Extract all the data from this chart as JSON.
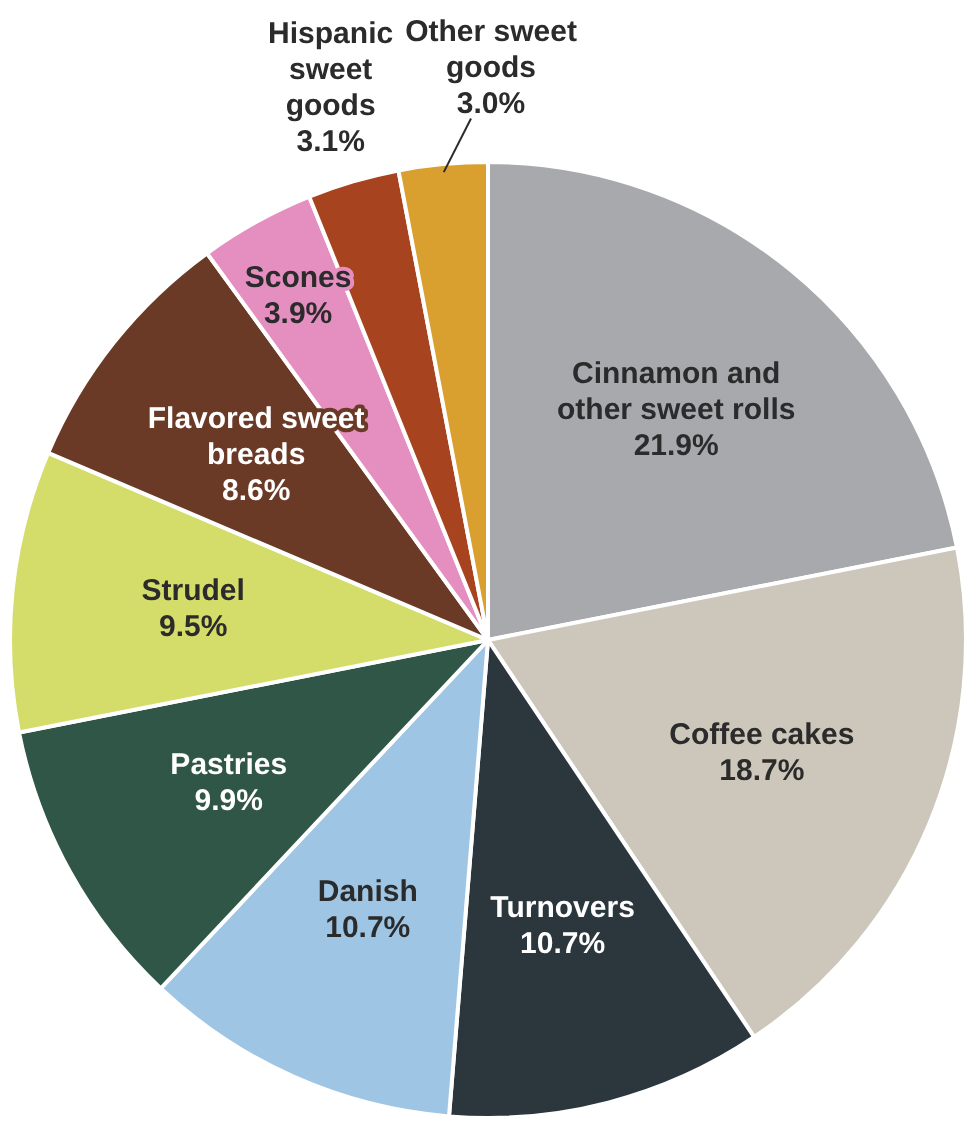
{
  "chart_data": {
    "type": "pie",
    "categories": [
      "Cinnamon and other sweet rolls",
      "Coffee cakes",
      "Turnovers",
      "Danish",
      "Pastries",
      "Strudel",
      "Flavored sweet breads",
      "Scones",
      "Hispanic sweet goods",
      "Other sweet goods"
    ],
    "values": [
      21.9,
      18.7,
      10.7,
      10.7,
      9.9,
      9.5,
      8.6,
      3.9,
      3.1,
      3.0
    ],
    "value_labels": [
      "21.9%",
      "18.7%",
      "10.7%",
      "10.7%",
      "9.9%",
      "9.5%",
      "8.6%",
      "3.9%",
      "3.1%",
      "3.0%"
    ],
    "colors": [
      "#a7a9ac",
      "#cdc7bb",
      "#2b363d",
      "#9fc5e4",
      "#2f5646",
      "#d4dc6a",
      "#6b3a27",
      "#e48fc0",
      "#a8431f",
      "#d9a030"
    ],
    "legend": false
  }
}
